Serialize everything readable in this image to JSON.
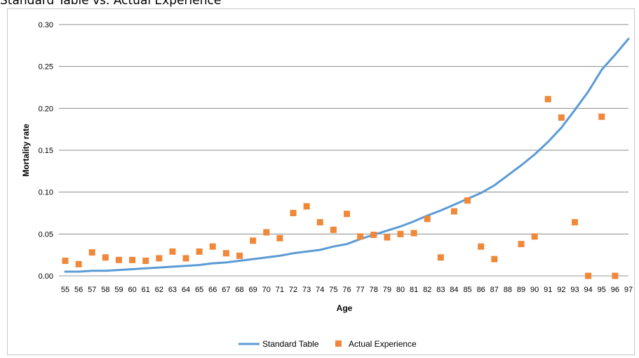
{
  "title": "Standard Table vs. Actual Experience",
  "chart_data": {
    "type": "line",
    "xlabel": "Age",
    "ylabel": "Mortality rate",
    "ylim": [
      0,
      0.3
    ],
    "y_ticks": [
      "0.00",
      "0.05",
      "0.10",
      "0.15",
      "0.20",
      "0.25",
      "0.30"
    ],
    "grid": true,
    "legend_position": "bottom",
    "categories": [
      "55",
      "56",
      "57",
      "58",
      "59",
      "60",
      "61",
      "62",
      "63",
      "64",
      "65",
      "66",
      "67",
      "68",
      "69",
      "70",
      "71",
      "72",
      "73",
      "74",
      "75",
      "76",
      "77",
      "78",
      "79",
      "80",
      "81",
      "82",
      "83",
      "84",
      "85",
      "86",
      "87",
      "88",
      "89",
      "90",
      "91",
      "92",
      "93",
      "94",
      "95",
      "96",
      "97"
    ],
    "series": [
      {
        "name": "Standard Table",
        "kind": "line",
        "color": "#5b9bd5",
        "values": [
          0.005,
          0.005,
          0.006,
          0.006,
          0.007,
          0.008,
          0.009,
          0.01,
          0.011,
          0.012,
          0.013,
          0.015,
          0.016,
          0.018,
          0.02,
          0.022,
          0.024,
          0.027,
          0.029,
          0.031,
          0.035,
          0.038,
          0.044,
          0.049,
          0.054,
          0.059,
          0.065,
          0.072,
          0.078,
          0.085,
          0.092,
          0.099,
          0.108,
          0.12,
          0.132,
          0.145,
          0.16,
          0.177,
          0.198,
          0.22,
          0.246,
          0.264,
          0.283
        ]
      },
      {
        "name": "Actual Experience",
        "kind": "scatter",
        "color": "#f0883a",
        "values": [
          0.018,
          0.014,
          0.028,
          0.022,
          0.019,
          0.019,
          0.018,
          0.021,
          0.029,
          0.021,
          0.029,
          0.035,
          0.027,
          0.024,
          0.042,
          0.052,
          0.045,
          0.075,
          0.083,
          0.064,
          0.055,
          0.074,
          0.047,
          0.049,
          0.046,
          0.05,
          0.051,
          0.068,
          0.022,
          0.077,
          0.09,
          0.035,
          0.02,
          null,
          0.038,
          0.047,
          0.211,
          0.189,
          0.064,
          0.0,
          0.19,
          0.0,
          null
        ]
      }
    ]
  }
}
